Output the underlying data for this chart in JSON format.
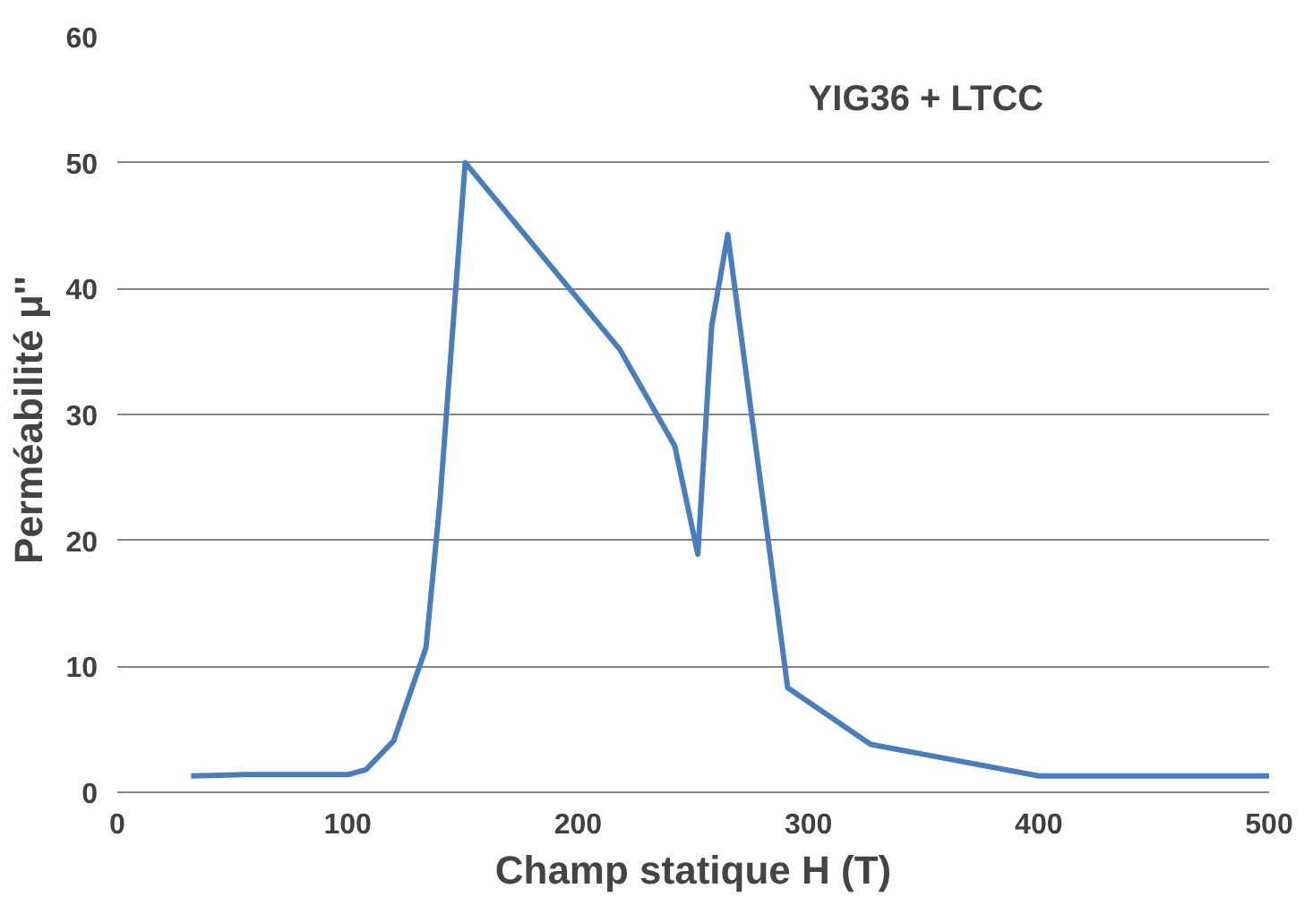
{
  "chart_data": {
    "type": "line",
    "title": "YIG36 + LTCC",
    "xlabel": "Champ statique H (T)",
    "ylabel": "Perméabilité  μ''",
    "x": [
      32,
      55,
      100,
      108,
      120,
      134,
      140,
      151,
      218,
      242,
      252,
      258,
      265,
      291,
      327,
      400,
      500
    ],
    "series": [
      {
        "color": "#4a7ebb",
        "values": [
          1.3,
          1.4,
          1.4,
          1.8,
          4.1,
          11.5,
          23,
          50,
          35.2,
          27.5,
          18.9,
          37,
          44.3,
          8.3,
          3.8,
          1.3,
          1.3
        ]
      }
    ],
    "xlim": [
      0,
      500
    ],
    "xticks": [
      0,
      100,
      200,
      300,
      400,
      500
    ],
    "ylim": [
      0,
      60
    ],
    "yticks": [
      0,
      10,
      20,
      30,
      40,
      50,
      60
    ],
    "grid": "y",
    "marker": "none",
    "line_style": "solid"
  }
}
